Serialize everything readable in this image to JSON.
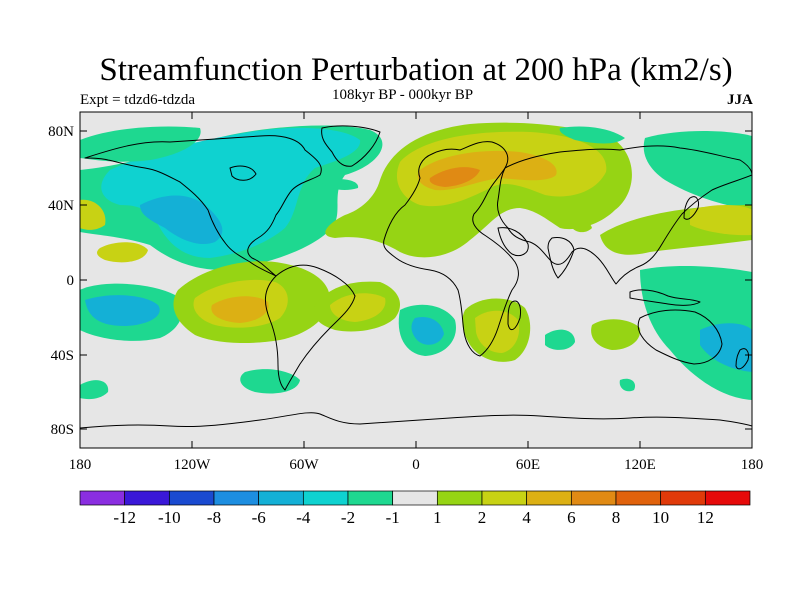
{
  "figure": {
    "title": "Streamfunction Perturbation at 200 hPa (km2/s)",
    "experiment_label": "Expt = tdzd6-tdzda",
    "period_label": "108kyr BP - 000kyr BP",
    "season_label": "JJA"
  },
  "map": {
    "projection": "cylindrical equidistant",
    "lon_range": [
      -180,
      180
    ],
    "lat_range": [
      -90,
      90
    ],
    "x_ticks": [
      "180",
      "120W",
      "60W",
      "0",
      "60E",
      "120E",
      "180"
    ],
    "y_ticks": [
      "80N",
      "40N",
      "0",
      "40S",
      "80S"
    ]
  },
  "colorbar": {
    "labels": [
      "-12",
      "-10",
      "-8",
      "-6",
      "-4",
      "-2",
      "-1",
      "1",
      "2",
      "4",
      "6",
      "8",
      "10",
      "12"
    ],
    "colors": [
      "#8a2ee0",
      "#3a18d8",
      "#1a4ad0",
      "#1d8ee0",
      "#14b0d6",
      "#0fd2d0",
      "#1ed890",
      "#e6e6e6",
      "#96d414",
      "#c8d214",
      "#dcb014",
      "#e08a14",
      "#e0620c",
      "#e03a0a",
      "#e60a0a"
    ]
  }
}
